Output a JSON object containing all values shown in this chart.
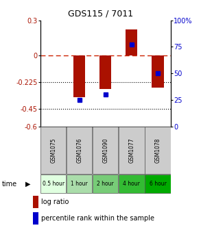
{
  "title": "GDS115 / 7011",
  "samples": [
    "GSM1075",
    "GSM1076",
    "GSM1090",
    "GSM1077",
    "GSM1078"
  ],
  "time_labels": [
    "0.5 hour",
    "1 hour",
    "2 hour",
    "4 hour",
    "6 hour"
  ],
  "time_colors": [
    "#e0ffe0",
    "#aaddaa",
    "#77cc77",
    "#33bb33",
    "#00aa00"
  ],
  "log_ratio": [
    0.0,
    -0.35,
    -0.28,
    0.22,
    -0.27
  ],
  "percentile": [
    null,
    25,
    30,
    77,
    50
  ],
  "ylim_left": [
    -0.6,
    0.3
  ],
  "ylim_right": [
    0,
    100
  ],
  "yticks_left": [
    0.3,
    0.0,
    -0.225,
    -0.45,
    -0.6
  ],
  "yticks_right": [
    100,
    75,
    50,
    25,
    0
  ],
  "bar_color": "#aa1100",
  "dot_color": "#0000cc",
  "zero_line_color": "#cc2200",
  "bg_color": "#ffffff"
}
